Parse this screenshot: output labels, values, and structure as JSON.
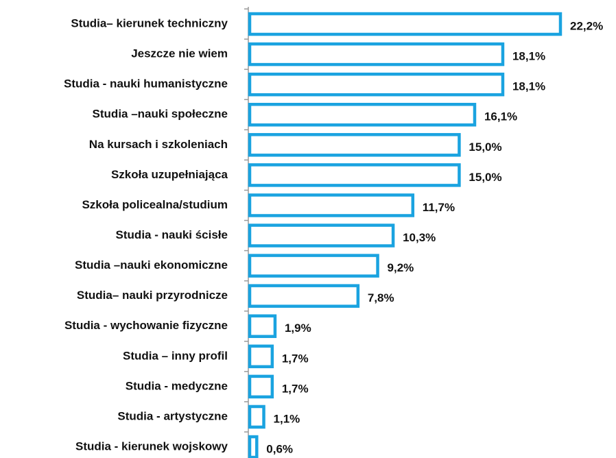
{
  "chart_data": {
    "type": "bar",
    "orientation": "horizontal",
    "categories": [
      "Studia– kierunek techniczny",
      "Jeszcze nie wiem",
      "Studia - nauki humanistyczne",
      "Studia –nauki społeczne",
      "Na kursach i szkoleniach",
      "Szkoła uzupełniająca",
      "Szkoła policealna/studium",
      "Studia - nauki ścisłe",
      "Studia –nauki ekonomiczne",
      "Studia– nauki przyrodnicze",
      "Studia - wychowanie fizyczne",
      "Studia – inny profil",
      "Studia - medyczne",
      "Studia - artystyczne",
      "Studia - kierunek wojskowy"
    ],
    "values": [
      22.2,
      18.1,
      18.1,
      16.1,
      15.0,
      15.0,
      11.7,
      10.3,
      9.2,
      7.8,
      1.9,
      1.7,
      1.7,
      1.1,
      0.6
    ],
    "value_labels": [
      "22,2%",
      "18,1%",
      "18,1%",
      "16,1%",
      "15,0%",
      "15,0%",
      "11,7%",
      "10,3%",
      "9,2%",
      "7,8%",
      "1,9%",
      "1,7%",
      "1,7%",
      "1,1%",
      "0,6%"
    ],
    "color": "#1aa3e0"
  }
}
